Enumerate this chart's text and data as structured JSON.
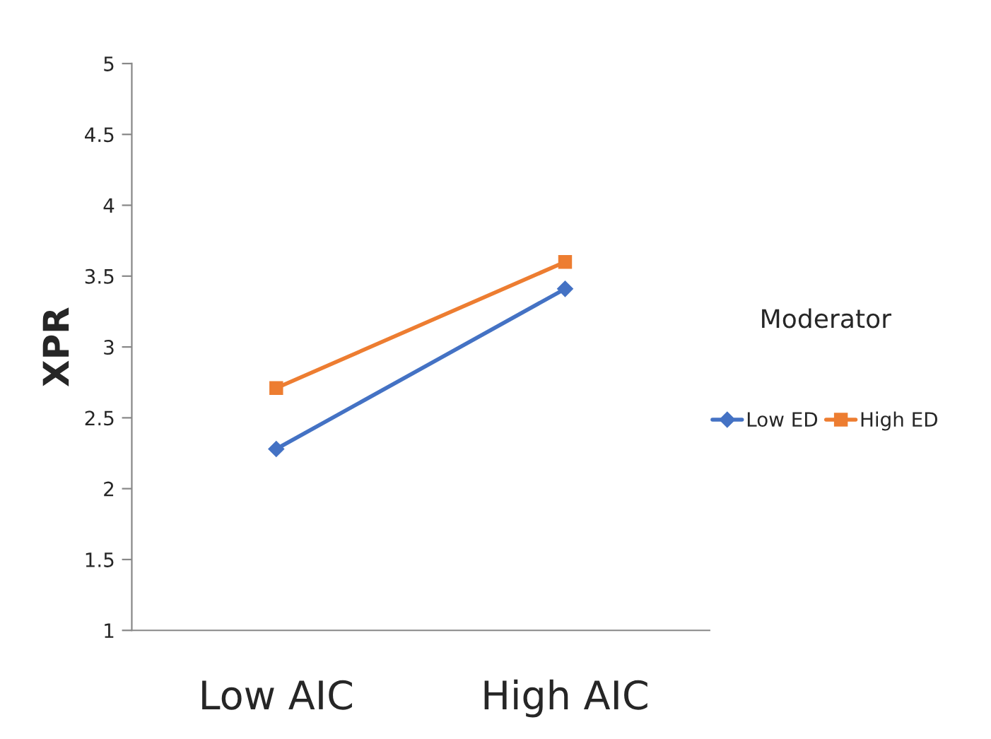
{
  "chart_data": {
    "type": "line",
    "ylabel": "XPR",
    "legend_title": "Moderator",
    "categories": [
      "Low AIC",
      "High AIC"
    ],
    "series": [
      {
        "name": "Low ED",
        "color": "#4472c4",
        "values": [
          2.28,
          3.41
        ],
        "marker": "diamond"
      },
      {
        "name": "High ED",
        "color": "#ed7d31",
        "values": [
          2.71,
          3.6
        ],
        "marker": "square"
      }
    ],
    "ylim": [
      1,
      5
    ],
    "yticks": [
      1,
      1.5,
      2,
      2.5,
      3,
      3.5,
      4,
      4.5,
      5
    ],
    "grid": false,
    "legend": "right",
    "line_style": "solid"
  }
}
